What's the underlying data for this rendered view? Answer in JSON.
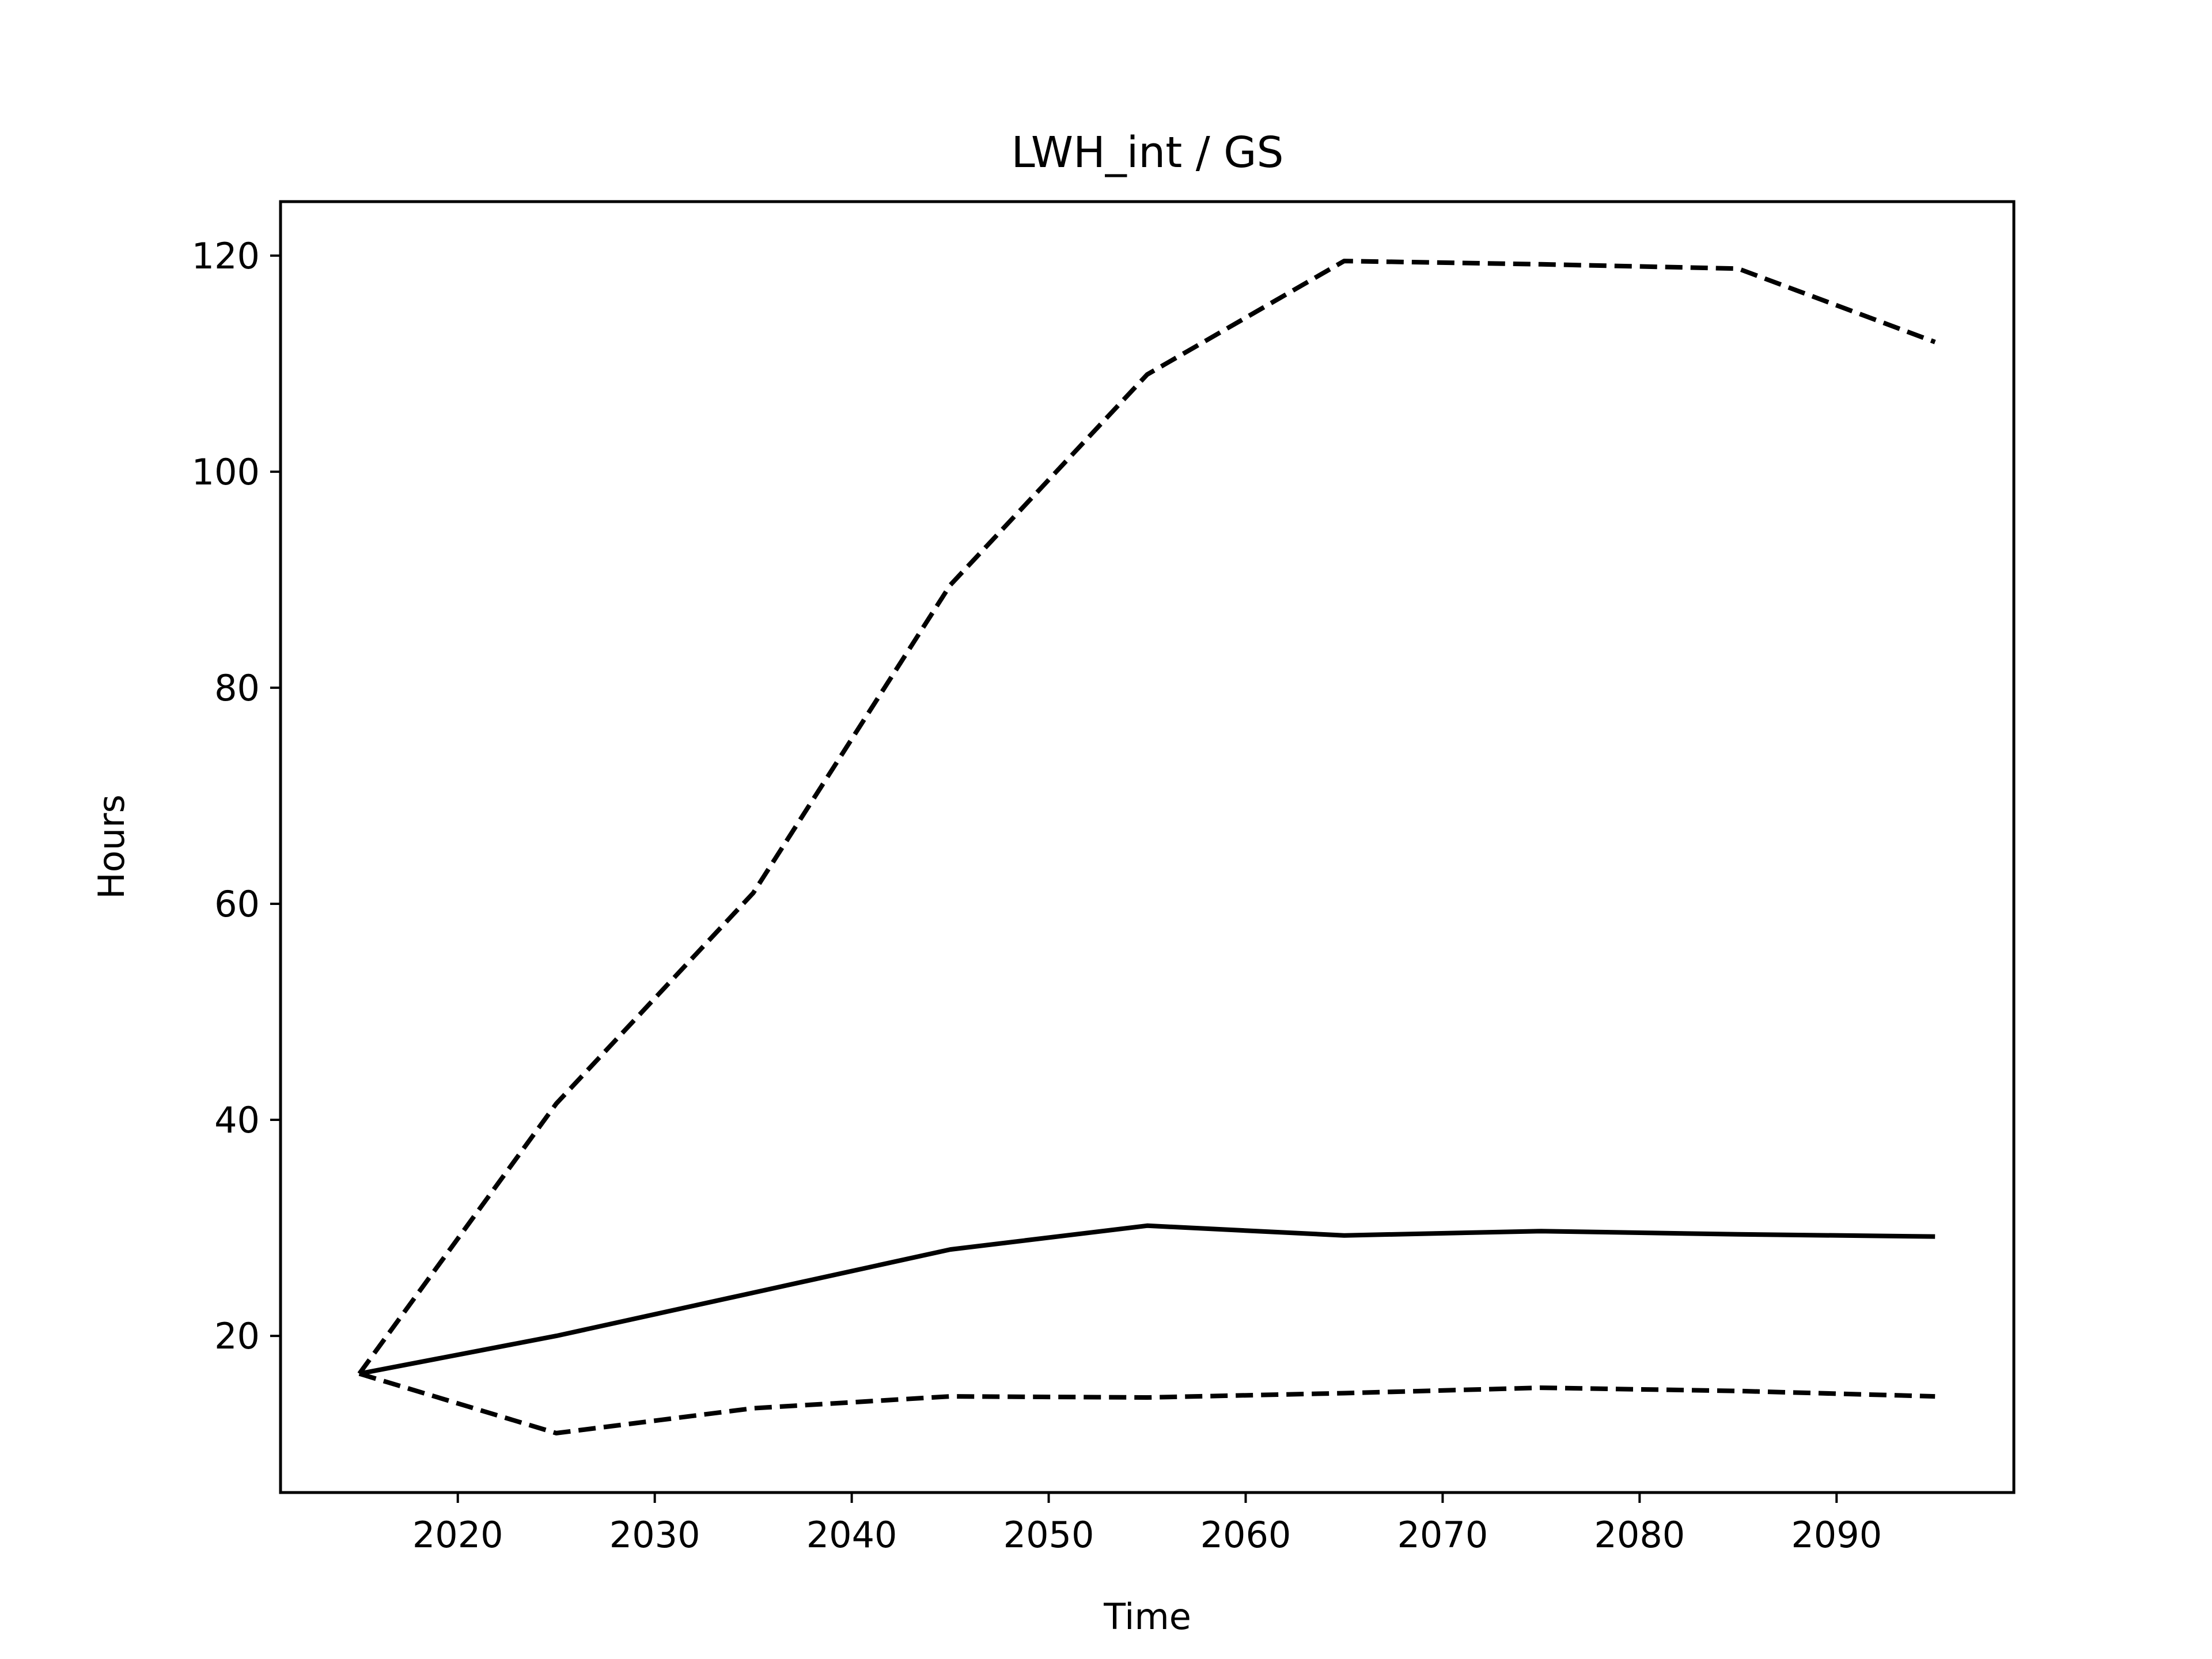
{
  "chart_data": {
    "type": "line",
    "title": "LWH_int / GS",
    "xlabel": "Time",
    "ylabel": "Hours",
    "xlim": [
      2011,
      2099
    ],
    "ylim": [
      5.5,
      125
    ],
    "xticks": [
      2020,
      2030,
      2040,
      2050,
      2060,
      2070,
      2080,
      2090
    ],
    "yticks": [
      20,
      40,
      60,
      80,
      100,
      120
    ],
    "grid": false,
    "x": [
      2015,
      2025,
      2035,
      2045,
      2055,
      2065,
      2075,
      2085,
      2095
    ],
    "series": [
      {
        "line_style": "dashed",
        "color": "#000000",
        "values": [
          16.5,
          41.5,
          61.0,
          89.5,
          109.0,
          119.5,
          119.2,
          118.8,
          112.0
        ]
      },
      {
        "line_style": "solid",
        "color": "#000000",
        "values": [
          16.5,
          20.0,
          24.0,
          28.0,
          30.2,
          29.3,
          29.7,
          29.4,
          29.2
        ]
      },
      {
        "line_style": "dashed",
        "color": "#000000",
        "values": [
          16.5,
          11.0,
          13.3,
          14.4,
          14.3,
          14.7,
          15.2,
          14.9,
          14.4
        ]
      }
    ]
  }
}
